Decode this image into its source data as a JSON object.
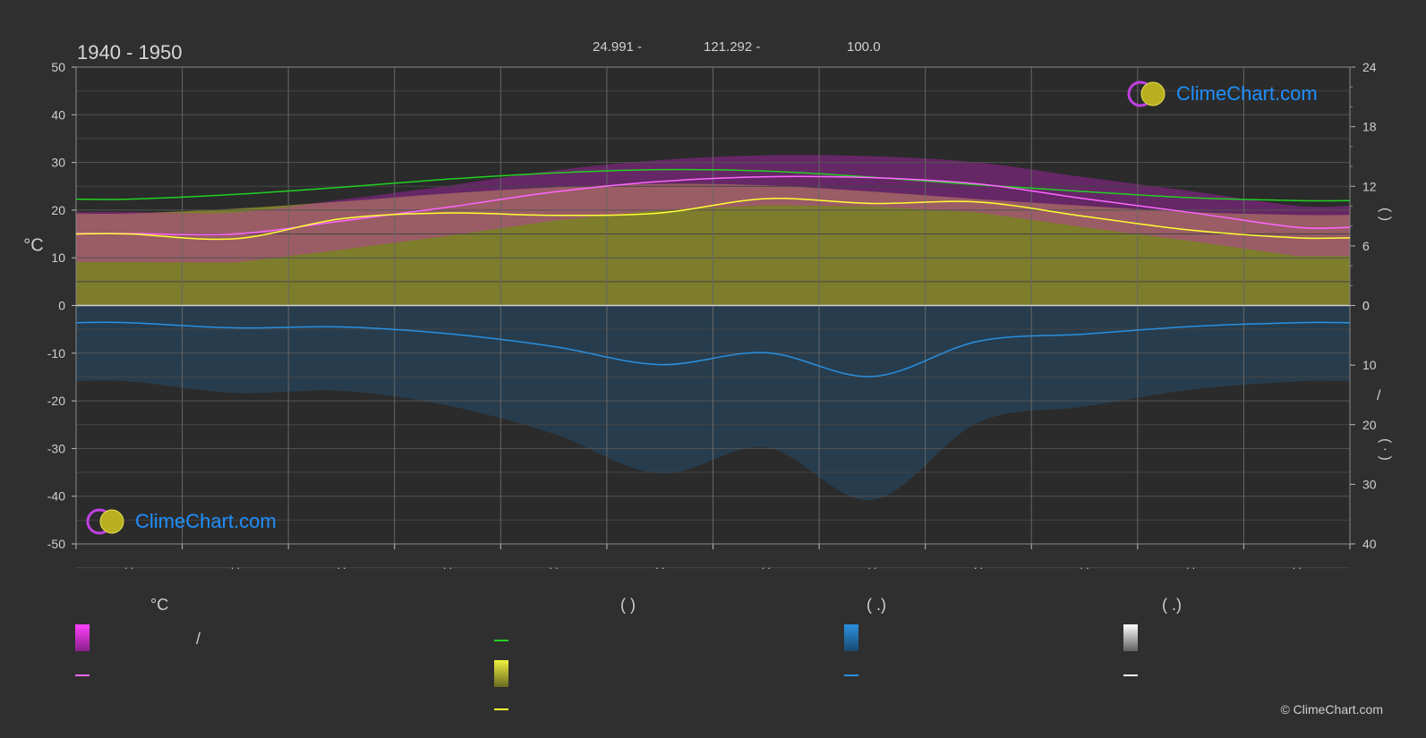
{
  "title": "1940 - 1950",
  "coords": {
    "lat": "24.991 -",
    "lon": "121.292 -",
    "elev": "100.0"
  },
  "left_axis_label": "°C",
  "logo_text": "ClimeChart.com",
  "copyright": "© ClimeChart.com",
  "colors": {
    "background": "#2f2f2f",
    "sunshine_band": "#9a9a2e",
    "temp_band": "#d020d0",
    "daylight": "#22d022",
    "sunshine_line": "#ffff33",
    "temp_line": "#ff66ff",
    "rain_line": "#2a90e0",
    "rain_band": "#1f5f8f",
    "logo": "#1e90ff"
  },
  "legend": {
    "col1_head": "°C",
    "col1_sep": "/",
    "col2_head": "(          )",
    "col3_head": "(   .)",
    "col4_head": "(   .)"
  },
  "right_axis_marks": [
    "(        )",
    "/",
    "(  ·   )"
  ],
  "x_tick_marks": ". .",
  "chart_data": {
    "type": "line",
    "title": "1940 - 1950",
    "ylabel": "°C",
    "ylim": [
      -50,
      50
    ],
    "yticks": [
      50,
      40,
      30,
      20,
      10,
      0,
      -10,
      -20,
      -30,
      -40,
      -50
    ],
    "y2_upper_ticks": [
      24,
      18,
      12,
      6,
      0
    ],
    "y2_lower_ticks": [
      0,
      10,
      20,
      30,
      40
    ],
    "months": 12,
    "series": [
      {
        "key": "daylight",
        "values": [
          22.3,
          23.3,
          24.8,
          26.5,
          27.8,
          28.5,
          28.2,
          26.9,
          25.3,
          23.9,
          22.6,
          22.0
        ]
      },
      {
        "key": "temp_mean",
        "values": [
          15.1,
          15.0,
          17.7,
          20.6,
          23.8,
          26.0,
          27.0,
          26.8,
          25.5,
          22.4,
          19.5,
          16.4
        ]
      },
      {
        "key": "sunshine",
        "values": [
          15.0,
          14.0,
          18.2,
          19.4,
          18.9,
          19.4,
          22.4,
          21.4,
          21.7,
          18.7,
          15.8,
          14.2
        ]
      },
      {
        "key": "rain",
        "values": [
          -3.6,
          -4.7,
          -4.5,
          -5.9,
          -8.6,
          -12.4,
          -9.9,
          -14.9,
          -7.5,
          -6.0,
          -4.4,
          -3.6
        ]
      }
    ]
  }
}
